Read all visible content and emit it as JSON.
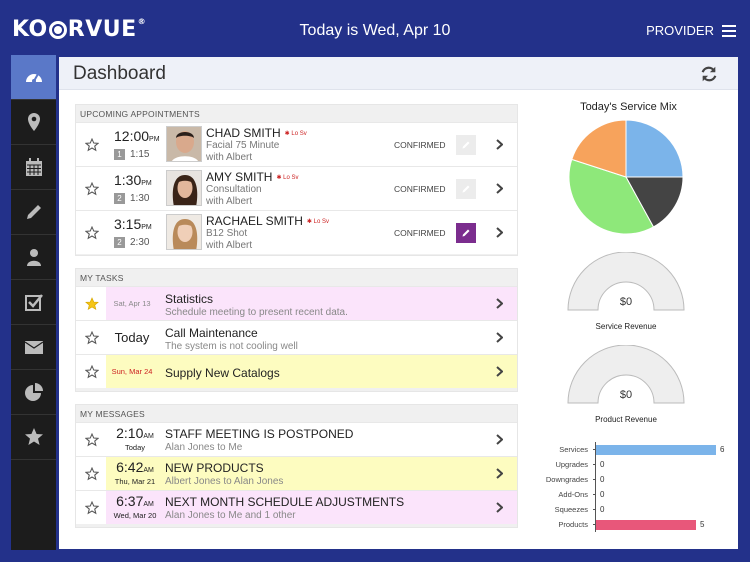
{
  "app": {
    "logo": "KORVUE",
    "date_title": "Today is Wed, Apr 10",
    "provider_label": "PROVIDER"
  },
  "sidebar": {
    "items": [
      {
        "icon": "speedometer-icon",
        "active": true
      },
      {
        "icon": "map-pin-icon"
      },
      {
        "icon": "calendar-icon"
      },
      {
        "icon": "pencil-icon"
      },
      {
        "icon": "person-icon"
      },
      {
        "icon": "checkbox-icon"
      },
      {
        "icon": "envelope-icon"
      },
      {
        "icon": "pie-chart-icon"
      },
      {
        "icon": "star-icon"
      }
    ]
  },
  "page": {
    "title": "Dashboard"
  },
  "appointments": {
    "section_title": "UPCOMING APPOINTMENTS",
    "items": [
      {
        "time": "12:00",
        "ampm": "PM",
        "badge": "1",
        "duration": "1:15",
        "name": "CHAD SMITH",
        "flag": "Lo Sv",
        "service": "Facial 75 Minute",
        "with": "with Albert",
        "status": "CONFIRMED"
      },
      {
        "time": "1:30",
        "ampm": "PM",
        "badge": "2",
        "duration": "1:30",
        "name": "AMY SMITH",
        "flag": "Lo Sv",
        "service": "Consultation",
        "with": "with Albert",
        "status": "CONFIRMED"
      },
      {
        "time": "3:15",
        "ampm": "PM",
        "badge": "2",
        "duration": "2:30",
        "name": "RACHAEL SMITH",
        "flag": "Lo Sv",
        "service": "B12 Shot",
        "with": "with Albert",
        "status": "CONFIRMED"
      }
    ]
  },
  "tasks": {
    "section_title": "MY TASKS",
    "items": [
      {
        "date": "Sat, Apr 13",
        "title": "Statistics",
        "desc": "Schedule meeting to present recent data."
      },
      {
        "date": "Today",
        "title": "Call Maintenance",
        "desc": "The system is not cooling well"
      },
      {
        "date": "Sun, Mar 24",
        "title": "Supply New Catalogs",
        "desc": ""
      }
    ]
  },
  "messages": {
    "section_title": "MY MESSAGES",
    "items": [
      {
        "time": "2:10",
        "ampm": "AM",
        "day": "Today",
        "subject": "STAFF MEETING IS POSTPONED",
        "from": "Alan Jones to Me"
      },
      {
        "time": "6:42",
        "ampm": "AM",
        "day": "Thu, Mar 21",
        "subject": "NEW PRODUCTS",
        "from": "Albert Jones to Alan Jones"
      },
      {
        "time": "6:37",
        "ampm": "AM",
        "day": "Wed, Mar 20",
        "subject": "NEXT MONTH SCHEDULE ADJUSTMENTS",
        "from": "Alan Jones to Me and 1 other"
      }
    ]
  },
  "service_mix": {
    "title": "Today's Service Mix"
  },
  "service_revenue": {
    "value": "$0",
    "label": "Service Revenue"
  },
  "product_revenue": {
    "value": "$0",
    "label": "Product Revenue"
  },
  "colors": {
    "brand": "#23318a",
    "sidebar_active": "#5a78c8",
    "edit_active": "#7b2d8e",
    "task_pink": "#fbe4fb",
    "task_yellow": "#fdfcc0",
    "bar_blue": "#7bb4ea",
    "bar_pink": "#e8577a"
  },
  "chart_data": [
    {
      "type": "pie",
      "title": "Today's Service Mix",
      "slices": [
        {
          "value": 25,
          "color": "#7bb4ea"
        },
        {
          "value": 17,
          "color": "#444444"
        },
        {
          "value": 38,
          "color": "#8ee87a"
        },
        {
          "value": 20,
          "color": "#f7a35c"
        }
      ]
    },
    {
      "type": "bar",
      "orientation": "horizontal",
      "categories": [
        "Services",
        "Upgrades",
        "Downgrades",
        "Add-Ons",
        "Squeezes",
        "Products"
      ],
      "values": [
        6,
        0,
        0,
        0,
        0,
        5
      ],
      "colors": [
        "#7bb4ea",
        "#7bb4ea",
        "#7bb4ea",
        "#7bb4ea",
        "#7bb4ea",
        "#e8577a"
      ],
      "xlim": [
        0,
        7
      ]
    }
  ]
}
